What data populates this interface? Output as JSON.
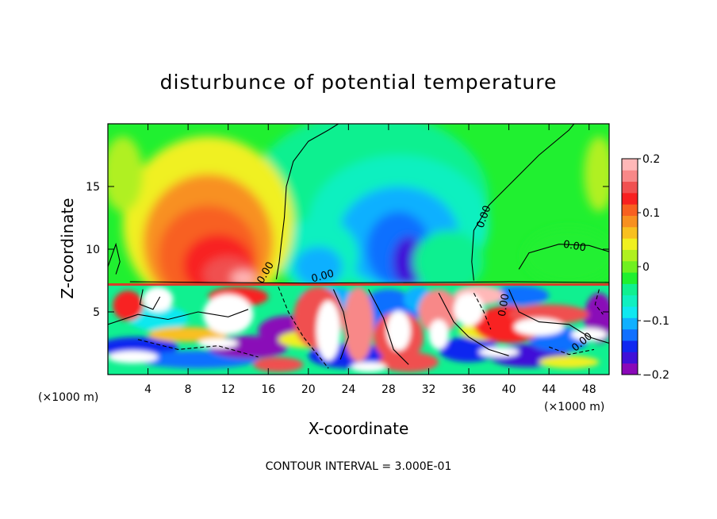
{
  "chart_data": {
    "type": "heatmap",
    "title": "disturbunce of potential temperature",
    "xlabel": "X-coordinate",
    "ylabel": "Z-coordinate",
    "x_unit": "(×1000 m)",
    "x_unit_right": "(×1000 m)",
    "xlim": [
      0,
      50
    ],
    "ylim": [
      0,
      20
    ],
    "x_ticks": [
      4,
      8,
      12,
      16,
      20,
      24,
      28,
      32,
      36,
      40,
      44,
      48
    ],
    "y_ticks": [
      5,
      10,
      15
    ],
    "colorbar": {
      "range": [
        -0.2,
        0.2
      ],
      "tick_values": [
        0.2,
        0.1,
        0,
        -0.1,
        -0.2
      ],
      "tick_labels": [
        "0.2",
        "0.1",
        "0",
        "−0.1",
        "−0.2"
      ],
      "colors": [
        "#8a08b8",
        "#4010d8",
        "#1028f0",
        "#1070ff",
        "#10b0ff",
        "#10e8f0",
        "#10f0c0",
        "#10f090",
        "#20f030",
        "#70f020",
        "#b0f020",
        "#f0f020",
        "#f8c020",
        "#f89020",
        "#f86020",
        "#f82020",
        "#f05050",
        "#f88888",
        "#ffb8b8"
      ]
    },
    "contour_labels": [
      "0.00",
      "0.00",
      "0.00",
      "0.00",
      "0.00",
      "0.00"
    ],
    "contour_interval": "CONTOUR INTERVAL = 3.000E-01",
    "layer_boundary_z": 7.2,
    "upper_features": [
      {
        "x": 10,
        "z": 8.2,
        "value": 0.15
      },
      {
        "x": 29,
        "z": 9.0,
        "value": -0.17
      },
      {
        "x": 21,
        "z": 8.5,
        "value": -0.09
      },
      {
        "x": 46,
        "z": 9.0,
        "value": -0.03
      }
    ]
  }
}
